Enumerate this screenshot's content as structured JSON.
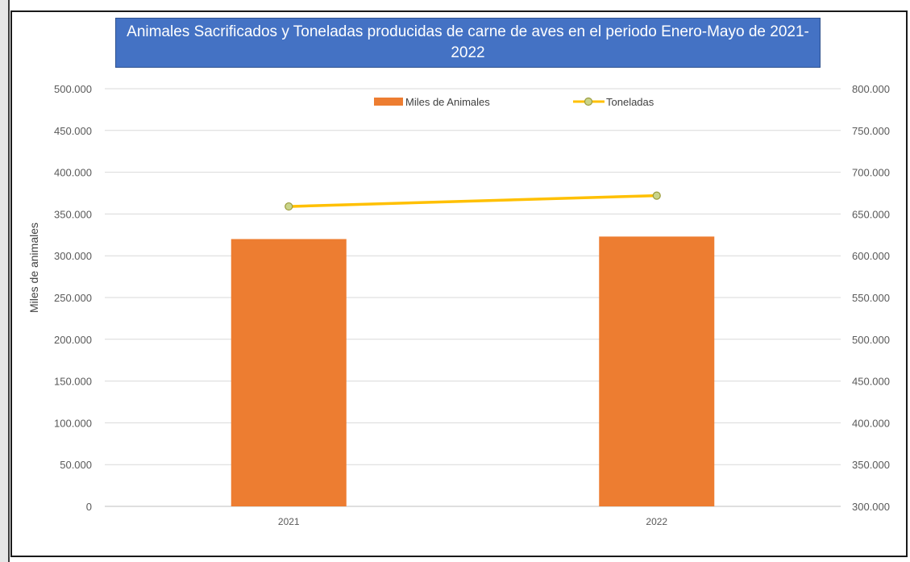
{
  "chart_data": {
    "type": "bar",
    "title": "Animales Sacrificados y Toneladas producidas de carne de aves en el periodo Enero-Mayo de 2021-2022",
    "categories": [
      "2021",
      "2022"
    ],
    "ylabel": "Miles de animales",
    "ylim": [
      0,
      500000
    ],
    "y2lim": [
      300000,
      800000
    ],
    "y_ticks": [
      "0",
      "50.000",
      "100.000",
      "150.000",
      "200.000",
      "250.000",
      "300.000",
      "350.000",
      "400.000",
      "450.000",
      "500.000"
    ],
    "y2_ticks": [
      "300.000",
      "350.000",
      "400.000",
      "450.000",
      "500.000",
      "550.000",
      "600.000",
      "650.000",
      "700.000",
      "750.000",
      "800.000"
    ],
    "grid": true,
    "legend_position": "top",
    "series": [
      {
        "name": "Miles de Animales",
        "type": "bar",
        "axis": "left",
        "values": [
          320000,
          323000
        ],
        "color": "#ed7d31"
      },
      {
        "name": "Toneladas",
        "type": "line",
        "axis": "right",
        "values": [
          659000,
          672000
        ],
        "color": "#ffc000",
        "marker_fill": "#c9d48a",
        "marker_stroke": "#9b9b3a"
      }
    ]
  }
}
